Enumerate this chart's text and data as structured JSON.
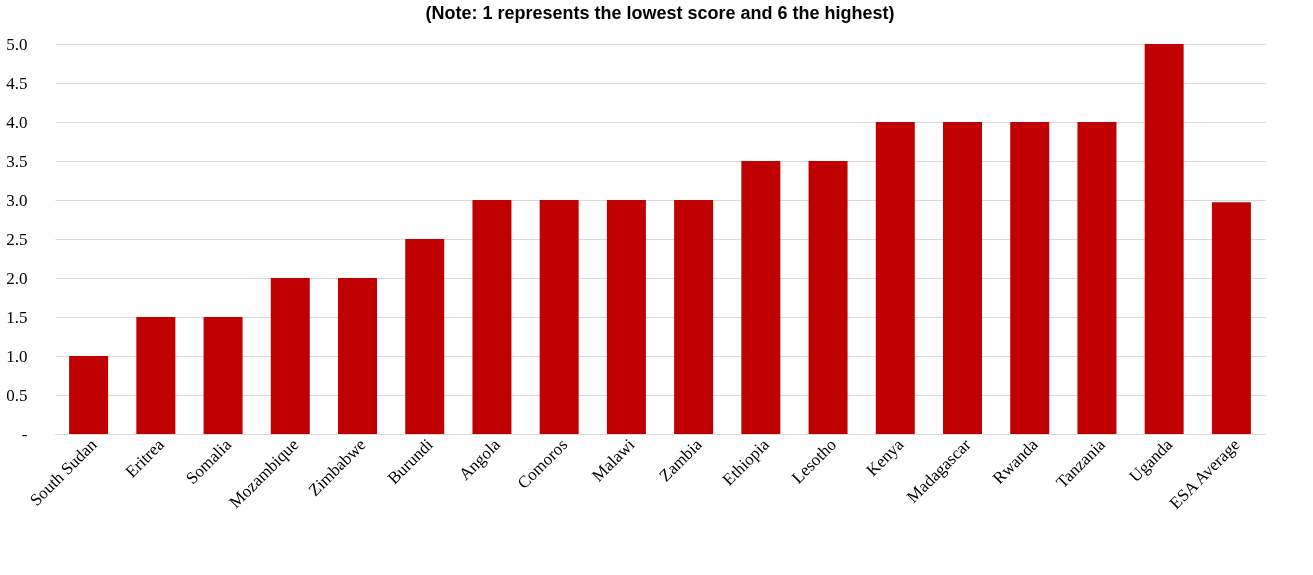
{
  "chart_data": {
    "type": "bar",
    "title": "(Note: 1 represents the lowest score and 6 the highest)",
    "categories": [
      "South Sudan",
      "Eritrea",
      "Somalia",
      "Mozambique",
      "Zimbabwe",
      "Burundi",
      "Angola",
      "Comoros",
      "Malawi",
      "Zambia",
      "Ethiopia",
      "Lesotho",
      "Kenya",
      "Madagascar",
      "Rwanda",
      "Tanzania",
      "Uganda",
      "ESA Average"
    ],
    "values": [
      1,
      1.5,
      1.5,
      2,
      2,
      2.5,
      3,
      3,
      3,
      3,
      3.5,
      3.5,
      4,
      4,
      4,
      4,
      5,
      2.97
    ],
    "color": "#c00000",
    "ylim": [
      0,
      5
    ],
    "yticks": [
      {
        "value": 0,
        "label": "-"
      },
      {
        "value": 0.5,
        "label": "0.5"
      },
      {
        "value": 1,
        "label": "1.0"
      },
      {
        "value": 1.5,
        "label": "1.5"
      },
      {
        "value": 2,
        "label": "2.0"
      },
      {
        "value": 2.5,
        "label": "2.5"
      },
      {
        "value": 3,
        "label": "3.0"
      },
      {
        "value": 3.5,
        "label": "3.5"
      },
      {
        "value": 4,
        "label": "4.0"
      },
      {
        "value": 4.5,
        "label": "4.5"
      },
      {
        "value": 5,
        "label": "5.0"
      }
    ],
    "grid": "y"
  }
}
